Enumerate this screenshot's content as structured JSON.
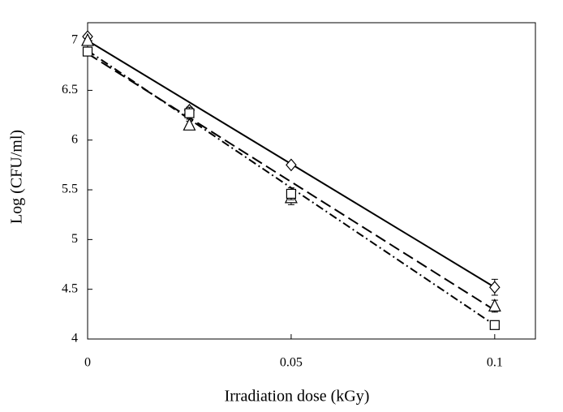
{
  "chart_data": {
    "type": "scatter",
    "x_label": "Irradiation dose (kGy)",
    "y_label": "Log (CFU/ml)",
    "x": [
      0,
      0.025,
      0.05,
      0.1
    ],
    "series": [
      {
        "marker": "diamond",
        "color": "#000000",
        "values": [
          7.04,
          6.3,
          5.75,
          4.52
        ],
        "errors": [
          0.02,
          0.03,
          0.02,
          0.08
        ]
      },
      {
        "marker": "triangle",
        "color": "#000000",
        "values": [
          7.0,
          6.15,
          5.42,
          4.33
        ],
        "errors": [
          0.02,
          0.04,
          0.07,
          0.06
        ]
      },
      {
        "marker": "square",
        "color": "#000000",
        "values": [
          6.89,
          6.27,
          5.46,
          4.14
        ],
        "errors": [
          0.03,
          0.06,
          0.06,
          0.04
        ]
      }
    ],
    "fits": [
      {
        "x": [
          0,
          0.1
        ],
        "values": [
          7.0,
          4.52
        ],
        "dash": "solid"
      },
      {
        "x": [
          0,
          0.1
        ],
        "values": [
          6.87,
          4.29
        ],
        "dash": "dashed"
      },
      {
        "x": [
          0,
          0.1
        ],
        "values": [
          6.9,
          4.14
        ],
        "dash": "dashdot"
      }
    ],
    "xlim": [
      0,
      0.11
    ],
    "ylim": [
      4,
      7.18
    ],
    "xticks": [
      0,
      0.05,
      0.1
    ],
    "yticks": [
      4,
      4.5,
      5,
      5.5,
      6,
      6.5,
      7
    ]
  }
}
